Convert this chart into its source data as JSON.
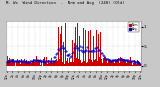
{
  "background_color": "#c8c8c8",
  "plot_bg_color": "#ffffff",
  "bar_color": "#cc0000",
  "avg_color": "#0000cc",
  "grid_color": "#aaaaaa",
  "ylim": [
    -0.15,
    1.15
  ],
  "ytick_positions": [
    0.0,
    0.5,
    1.0
  ],
  "ytick_labels": [
    "0",
    ".5",
    "1"
  ],
  "n_points": 144,
  "legend_bar_label": "Nrm",
  "legend_avg_label": "Avg",
  "title_line": "M. Wx  Wind Direction  -  Nrm and Avg  (24H) (Old)"
}
